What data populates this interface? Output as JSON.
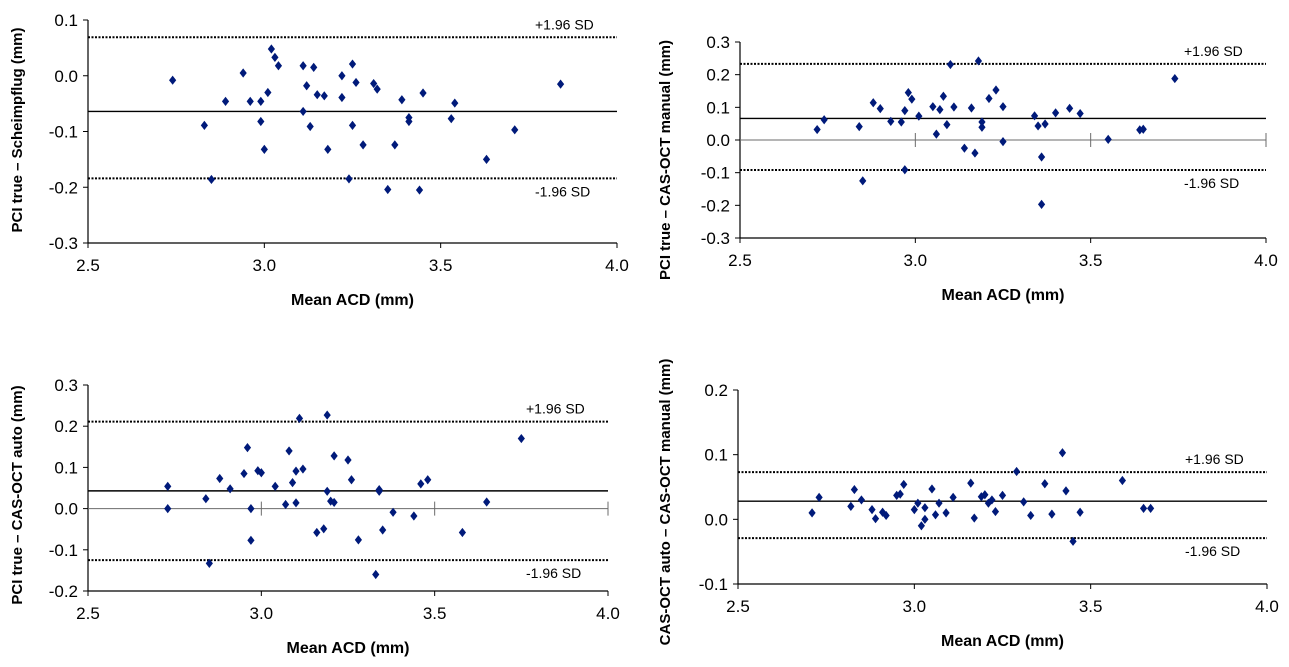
{
  "chart_data": [
    {
      "type": "scatter",
      "xlabel": "Mean ACD (mm)",
      "ylabel": "PCI true – Scheimpflug (mm)",
      "xlim": [
        2.5,
        4.0
      ],
      "ylim": [
        -0.3,
        0.1
      ],
      "xticks": [
        2.5,
        3.0,
        3.5,
        4.0
      ],
      "xtick_labels": [
        "2.5",
        "3.0",
        "3.5",
        "4.0"
      ],
      "yticks": [
        0.1,
        0.0,
        -0.1,
        -0.2,
        -0.3
      ],
      "ytick_labels": [
        "0.1",
        "0.0",
        "-0.1",
        "-0.2",
        "-0.3"
      ],
      "zero_axis": false,
      "mean_line": -0.064,
      "upper_loa": 0.069,
      "lower_loa": -0.184,
      "upper_label": "+1.96 SD",
      "lower_label": "-1.96 SD",
      "points": [
        [
          2.74,
          -0.008
        ],
        [
          2.83,
          -0.089
        ],
        [
          2.85,
          -0.186
        ],
        [
          2.89,
          -0.046
        ],
        [
          2.94,
          0.005
        ],
        [
          2.96,
          -0.046
        ],
        [
          2.99,
          -0.046
        ],
        [
          2.99,
          -0.082
        ],
        [
          3.0,
          -0.132
        ],
        [
          3.01,
          -0.03
        ],
        [
          3.02,
          0.048
        ],
        [
          3.03,
          0.033
        ],
        [
          3.04,
          0.018
        ],
        [
          3.11,
          0.018
        ],
        [
          3.11,
          -0.064
        ],
        [
          3.12,
          -0.018
        ],
        [
          3.13,
          -0.091
        ],
        [
          3.14,
          0.015
        ],
        [
          3.15,
          -0.034
        ],
        [
          3.17,
          -0.036
        ],
        [
          3.18,
          -0.132
        ],
        [
          3.22,
          0.0
        ],
        [
          3.22,
          -0.039
        ],
        [
          3.24,
          -0.185
        ],
        [
          3.25,
          0.021
        ],
        [
          3.25,
          -0.089
        ],
        [
          3.26,
          -0.012
        ],
        [
          3.28,
          -0.124
        ],
        [
          3.31,
          -0.014
        ],
        [
          3.32,
          -0.024
        ],
        [
          3.35,
          -0.204
        ],
        [
          3.37,
          -0.124
        ],
        [
          3.39,
          -0.043
        ],
        [
          3.41,
          -0.082
        ],
        [
          3.41,
          -0.075
        ],
        [
          3.44,
          -0.205
        ],
        [
          3.45,
          -0.031
        ],
        [
          3.53,
          -0.077
        ],
        [
          3.54,
          -0.049
        ],
        [
          3.63,
          -0.15
        ],
        [
          3.71,
          -0.097
        ],
        [
          3.84,
          -0.015
        ]
      ]
    },
    {
      "type": "scatter",
      "xlabel": "Mean ACD (mm)",
      "ylabel": "PCI true – CAS-OCT manual (mm)",
      "xlim": [
        2.5,
        4.0
      ],
      "ylim": [
        -0.3,
        0.3
      ],
      "xticks": [
        2.5,
        3.0,
        3.5,
        4.0
      ],
      "xtick_labels": [
        "2.5",
        "3.0",
        "3.5",
        "4.0"
      ],
      "yticks": [
        0.3,
        0.2,
        0.1,
        0.0,
        -0.1,
        -0.2,
        -0.3
      ],
      "ytick_labels": [
        "0.3",
        "0.2",
        "0.1",
        "0.0",
        "-0.1",
        "-0.2",
        "-0.3"
      ],
      "zero_axis": true,
      "mean_line": 0.066,
      "upper_loa": 0.233,
      "lower_loa": -0.092,
      "upper_label": "+1.96 SD",
      "lower_label": "-1.96 SD",
      "points": [
        [
          2.72,
          0.032
        ],
        [
          2.74,
          0.062
        ],
        [
          2.84,
          0.041
        ],
        [
          2.85,
          -0.125
        ],
        [
          2.88,
          0.114
        ],
        [
          2.9,
          0.096
        ],
        [
          2.93,
          0.057
        ],
        [
          2.96,
          0.055
        ],
        [
          2.97,
          0.09
        ],
        [
          2.97,
          -0.091
        ],
        [
          2.98,
          0.145
        ],
        [
          2.99,
          0.125
        ],
        [
          3.01,
          0.073
        ],
        [
          3.05,
          0.102
        ],
        [
          3.06,
          0.018
        ],
        [
          3.07,
          0.093
        ],
        [
          3.08,
          0.134
        ],
        [
          3.09,
          0.047
        ],
        [
          3.1,
          0.231
        ],
        [
          3.11,
          0.101
        ],
        [
          3.14,
          -0.025
        ],
        [
          3.16,
          0.098
        ],
        [
          3.17,
          -0.04
        ],
        [
          3.18,
          0.242
        ],
        [
          3.19,
          0.039
        ],
        [
          3.19,
          0.055
        ],
        [
          3.21,
          0.127
        ],
        [
          3.23,
          0.153
        ],
        [
          3.25,
          -0.005
        ],
        [
          3.25,
          0.102
        ],
        [
          3.34,
          0.074
        ],
        [
          3.35,
          0.043
        ],
        [
          3.36,
          -0.052
        ],
        [
          3.36,
          -0.197
        ],
        [
          3.37,
          0.049
        ],
        [
          3.4,
          0.083
        ],
        [
          3.44,
          0.097
        ],
        [
          3.47,
          0.081
        ],
        [
          3.55,
          0.002
        ],
        [
          3.64,
          0.031
        ],
        [
          3.65,
          0.033
        ],
        [
          3.74,
          0.188
        ]
      ]
    },
    {
      "type": "scatter",
      "xlabel": "Mean ACD (mm)",
      "ylabel": "PCI true – CAS-OCT auto (mm)",
      "xlim": [
        2.5,
        4.0
      ],
      "ylim": [
        -0.2,
        0.3
      ],
      "xticks": [
        2.5,
        3.0,
        3.5,
        4.0
      ],
      "xtick_labels": [
        "2.5",
        "3.0",
        "3.5",
        "4.0"
      ],
      "yticks": [
        0.3,
        0.2,
        0.1,
        0.0,
        -0.1,
        -0.2
      ],
      "ytick_labels": [
        "0.3",
        "0.2",
        "0.1",
        "0.0",
        "-0.1",
        "-0.2"
      ],
      "zero_axis": true,
      "mean_line": 0.043,
      "upper_loa": 0.211,
      "lower_loa": -0.125,
      "upper_label": "+1.96 SD",
      "lower_label": "-1.96 SD",
      "points": [
        [
          2.73,
          0.054
        ],
        [
          2.73,
          0.0
        ],
        [
          2.84,
          0.024
        ],
        [
          2.85,
          -0.133
        ],
        [
          2.88,
          0.073
        ],
        [
          2.91,
          0.048
        ],
        [
          2.95,
          0.085
        ],
        [
          2.96,
          0.148
        ],
        [
          2.97,
          0.0
        ],
        [
          2.97,
          -0.077
        ],
        [
          2.99,
          0.092
        ],
        [
          3.0,
          0.087
        ],
        [
          3.04,
          0.054
        ],
        [
          3.07,
          0.01
        ],
        [
          3.08,
          0.14
        ],
        [
          3.09,
          0.063
        ],
        [
          3.1,
          0.091
        ],
        [
          3.1,
          0.014
        ],
        [
          3.11,
          0.219
        ],
        [
          3.12,
          0.096
        ],
        [
          3.16,
          -0.058
        ],
        [
          3.18,
          -0.049
        ],
        [
          3.19,
          0.042
        ],
        [
          3.19,
          0.227
        ],
        [
          3.2,
          0.018
        ],
        [
          3.21,
          0.128
        ],
        [
          3.21,
          0.015
        ],
        [
          3.25,
          0.118
        ],
        [
          3.26,
          0.07
        ],
        [
          3.28,
          -0.076
        ],
        [
          3.33,
          -0.16
        ],
        [
          3.34,
          0.046
        ],
        [
          3.34,
          0.042
        ],
        [
          3.35,
          -0.052
        ],
        [
          3.38,
          -0.009
        ],
        [
          3.44,
          -0.018
        ],
        [
          3.46,
          0.06
        ],
        [
          3.48,
          0.07
        ],
        [
          3.58,
          -0.058
        ],
        [
          3.65,
          0.016
        ],
        [
          3.75,
          0.17
        ]
      ]
    },
    {
      "type": "scatter",
      "xlabel": "Mean ACD (mm)",
      "ylabel": "CAS-OCT auto – CAS-OCT manual (mm)",
      "xlim": [
        2.5,
        4.0
      ],
      "ylim": [
        -0.1,
        0.2
      ],
      "xticks": [
        2.5,
        3.0,
        3.5,
        4.0
      ],
      "xtick_labels": [
        "2.5",
        "3.0",
        "3.5",
        "4.0"
      ],
      "yticks": [
        0.2,
        0.1,
        0.0,
        -0.1
      ],
      "ytick_labels": [
        "0.2",
        "0.1",
        "0.0",
        "-0.1"
      ],
      "zero_axis": false,
      "mean_line": 0.028,
      "upper_loa": 0.073,
      "lower_loa": -0.029,
      "upper_label": "+1.96 SD",
      "lower_label": "-1.96 SD",
      "points": [
        [
          2.71,
          0.01
        ],
        [
          2.73,
          0.034
        ],
        [
          2.82,
          0.02
        ],
        [
          2.83,
          0.046
        ],
        [
          2.85,
          0.03
        ],
        [
          2.88,
          0.015
        ],
        [
          2.89,
          0.001
        ],
        [
          2.91,
          0.011
        ],
        [
          2.92,
          0.006
        ],
        [
          2.95,
          0.037
        ],
        [
          2.96,
          0.039
        ],
        [
          2.97,
          0.054
        ],
        [
          3.0,
          0.015
        ],
        [
          3.01,
          0.025
        ],
        [
          3.02,
          -0.01
        ],
        [
          3.03,
          0.0
        ],
        [
          3.03,
          0.018
        ],
        [
          3.05,
          0.047
        ],
        [
          3.06,
          0.007
        ],
        [
          3.07,
          0.025
        ],
        [
          3.09,
          0.01
        ],
        [
          3.11,
          0.034
        ],
        [
          3.16,
          0.056
        ],
        [
          3.17,
          0.002
        ],
        [
          3.19,
          0.035
        ],
        [
          3.2,
          0.038
        ],
        [
          3.21,
          0.025
        ],
        [
          3.22,
          0.03
        ],
        [
          3.23,
          0.012
        ],
        [
          3.25,
          0.037
        ],
        [
          3.29,
          0.074
        ],
        [
          3.31,
          0.027
        ],
        [
          3.33,
          0.006
        ],
        [
          3.37,
          0.055
        ],
        [
          3.39,
          0.008
        ],
        [
          3.42,
          0.103
        ],
        [
          3.43,
          0.044
        ],
        [
          3.45,
          -0.034
        ],
        [
          3.47,
          0.011
        ],
        [
          3.59,
          0.06
        ],
        [
          3.65,
          0.017
        ],
        [
          3.67,
          0.017
        ]
      ]
    }
  ]
}
